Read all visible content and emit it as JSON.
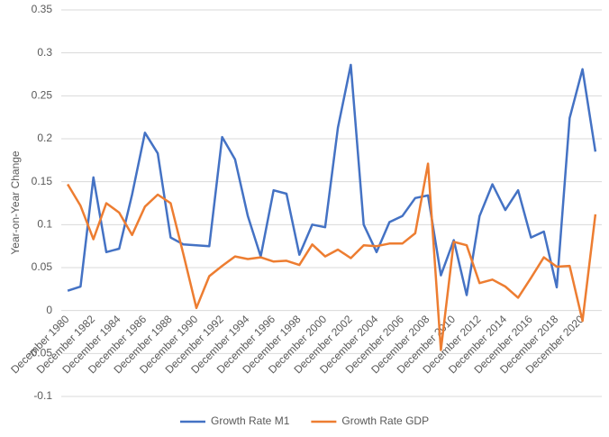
{
  "chart_data": {
    "type": "line",
    "y_label": "Year-on-Year Change",
    "categories": [
      "December 1980",
      null,
      "December 1982",
      null,
      "December 1984",
      null,
      "December 1986",
      null,
      "December 1988",
      null,
      "December 1990",
      null,
      "December 1992",
      null,
      "December 1994",
      null,
      "December 1996",
      null,
      "December 1998",
      null,
      "December 2000",
      null,
      "December 2002",
      null,
      "December 2004",
      null,
      "December 2006",
      null,
      "December 2008",
      null,
      "December 2010",
      null,
      "December 2012",
      null,
      "December 2014",
      null,
      "December 2016",
      null,
      "December 2018",
      null,
      "December 2020",
      null
    ],
    "series": [
      {
        "name": "Growth Rate M1",
        "color": "#4472c4",
        "values": [
          0.023,
          0.028,
          0.155,
          0.068,
          0.072,
          0.135,
          0.207,
          0.183,
          0.085,
          0.077,
          0.076,
          0.075,
          0.202,
          0.176,
          0.11,
          0.063,
          0.14,
          0.136,
          0.065,
          0.1,
          0.097,
          0.213,
          0.286,
          0.1,
          0.068,
          0.103,
          0.11,
          0.131,
          0.134,
          0.041,
          0.082,
          0.018,
          0.11,
          0.147,
          0.117,
          0.14,
          0.085,
          0.092,
          0.027,
          0.224,
          0.281,
          0.185
        ]
      },
      {
        "name": "Growth Rate GDP",
        "color": "#ed7d31",
        "values": [
          0.147,
          0.122,
          0.083,
          0.125,
          0.114,
          0.088,
          0.121,
          0.135,
          0.125,
          0.065,
          0.003,
          0.04,
          0.052,
          0.063,
          0.06,
          0.062,
          0.057,
          0.058,
          0.053,
          0.077,
          0.063,
          0.071,
          0.061,
          0.076,
          0.075,
          0.078,
          0.078,
          0.09,
          0.171,
          -0.046,
          0.08,
          0.076,
          0.032,
          0.036,
          0.028,
          0.015,
          0.038,
          0.062,
          0.051,
          0.052,
          -0.012,
          0.112
        ]
      }
    ],
    "ylim": [
      -0.1,
      0.35
    ],
    "yticks": [
      -0.1,
      -0.05,
      0,
      0.05,
      0.1,
      0.15,
      0.2,
      0.25,
      0.3,
      0.35
    ],
    "grid": true,
    "legend": "bottom"
  }
}
